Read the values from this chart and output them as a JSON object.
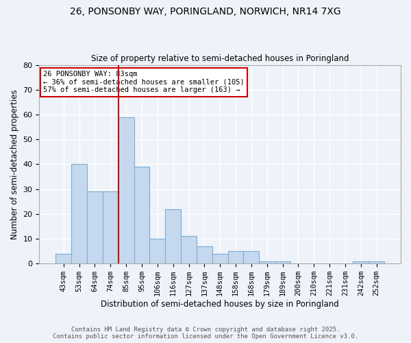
{
  "title1": "26, PONSONBY WAY, PORINGLAND, NORWICH, NR14 7XG",
  "title2": "Size of property relative to semi-detached houses in Poringland",
  "xlabel": "Distribution of semi-detached houses by size in Poringland",
  "ylabel": "Number of semi-detached properties",
  "bins": [
    "43sqm",
    "53sqm",
    "64sqm",
    "74sqm",
    "85sqm",
    "95sqm",
    "106sqm",
    "116sqm",
    "127sqm",
    "137sqm",
    "148sqm",
    "158sqm",
    "168sqm",
    "179sqm",
    "189sqm",
    "200sqm",
    "210sqm",
    "221sqm",
    "231sqm",
    "242sqm",
    "252sqm"
  ],
  "counts": [
    4,
    40,
    29,
    29,
    59,
    39,
    10,
    22,
    11,
    7,
    4,
    5,
    5,
    1,
    1,
    0,
    0,
    0,
    0,
    1,
    1
  ],
  "bar_color": "#c5d8ee",
  "bar_edge_color": "#7aafd4",
  "subject_label": "26 PONSONBY WAY: 83sqm",
  "annotation_line1": "← 36% of semi-detached houses are smaller (105)",
  "annotation_line2": "57% of semi-detached houses are larger (163) →",
  "annotation_box_color": "#ffffff",
  "annotation_box_edge_color": "#cc0000",
  "red_line_color": "#cc0000",
  "ylim": [
    0,
    80
  ],
  "yticks": [
    0,
    10,
    20,
    30,
    40,
    50,
    60,
    70,
    80
  ],
  "footer1": "Contains HM Land Registry data © Crown copyright and database right 2025.",
  "footer2": "Contains public sector information licensed under the Open Government Licence v3.0.",
  "background_color": "#eef2f9",
  "grid_color": "#ffffff"
}
